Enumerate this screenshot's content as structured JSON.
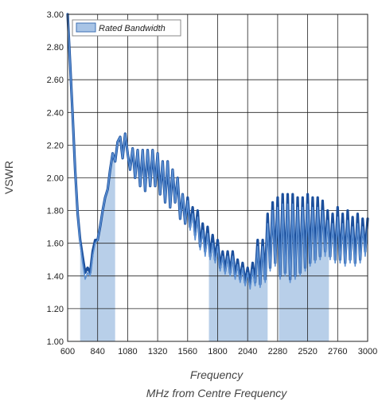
{
  "chart_data": {
    "type": "line",
    "title": "",
    "ylabel": "VSWR",
    "xlabel_line1": "Frequency",
    "xlabel_line2": "MHz from Centre Frequency",
    "xlim": [
      600,
      3000
    ],
    "ylim": [
      1.0,
      3.0
    ],
    "x_ticks": [
      600,
      840,
      1080,
      1320,
      1560,
      1800,
      2040,
      2280,
      2520,
      2760,
      3000
    ],
    "y_ticks": [
      "1.00",
      "1.20",
      "1.40",
      "1.60",
      "1.80",
      "2.00",
      "2.20",
      "2.40",
      "2.60",
      "2.80",
      "3.00"
    ],
    "grid": true,
    "legend": {
      "label": "Rated Bandwidth",
      "placement": "top-left"
    },
    "colors": {
      "band_fill": "#b8cfe9",
      "legend_fill": "#a8c4e6",
      "outline_series": "#1b4f9c",
      "inner_series": "#5b8fd2",
      "grid": "#222222"
    },
    "rated_bands": [
      {
        "x_start": 700,
        "x_end": 980
      },
      {
        "x_start": 1730,
        "x_end": 2200
      },
      {
        "x_start": 2290,
        "x_end": 2690
      }
    ],
    "series": [
      {
        "style": "dark-outer",
        "x": [
          600,
          620,
          640,
          660,
          680,
          700,
          720,
          740,
          760,
          780,
          800,
          820,
          840,
          860,
          880,
          900,
          920,
          940,
          960,
          980,
          1000,
          1020,
          1040,
          1060,
          1080,
          1100,
          1120,
          1140,
          1160,
          1180,
          1200,
          1220,
          1240,
          1260,
          1280,
          1300,
          1320,
          1340,
          1360,
          1380,
          1400,
          1420,
          1440,
          1460,
          1480,
          1500,
          1520,
          1540,
          1560,
          1580,
          1600,
          1620,
          1640,
          1660,
          1680,
          1700,
          1720,
          1740,
          1760,
          1780,
          1800,
          1820,
          1840,
          1860,
          1880,
          1900,
          1920,
          1940,
          1960,
          1980,
          2000,
          2020,
          2040,
          2060,
          2080,
          2100,
          2120,
          2140,
          2160,
          2180,
          2200,
          2220,
          2240,
          2260,
          2280,
          2300,
          2320,
          2340,
          2360,
          2380,
          2400,
          2420,
          2440,
          2460,
          2480,
          2500,
          2520,
          2540,
          2560,
          2580,
          2600,
          2620,
          2640,
          2660,
          2680,
          2700,
          2720,
          2740,
          2760,
          2780,
          2800,
          2820,
          2840,
          2860,
          2880,
          2900,
          2920,
          2940,
          2960,
          2980,
          3000
        ],
        "y": [
          3.0,
          2.7,
          2.38,
          2.05,
          1.78,
          1.62,
          1.52,
          1.42,
          1.45,
          1.42,
          1.55,
          1.62,
          1.62,
          1.7,
          1.8,
          1.88,
          1.93,
          2.05,
          2.15,
          2.1,
          2.22,
          2.25,
          2.12,
          2.27,
          2.15,
          2.05,
          2.18,
          2.0,
          2.17,
          1.95,
          2.17,
          1.92,
          2.17,
          1.95,
          2.17,
          1.95,
          2.15,
          1.9,
          2.1,
          1.85,
          2.1,
          1.82,
          2.05,
          1.85,
          2.0,
          1.75,
          1.9,
          1.72,
          1.88,
          1.7,
          1.82,
          1.65,
          1.8,
          1.58,
          1.72,
          1.55,
          1.7,
          1.52,
          1.65,
          1.5,
          1.62,
          1.45,
          1.55,
          1.43,
          1.55,
          1.42,
          1.55,
          1.4,
          1.5,
          1.38,
          1.48,
          1.36,
          1.45,
          1.35,
          1.48,
          1.36,
          1.62,
          1.35,
          1.62,
          1.38,
          1.78,
          1.45,
          1.85,
          1.48,
          1.88,
          1.4,
          1.9,
          1.42,
          1.9,
          1.38,
          1.9,
          1.4,
          1.88,
          1.42,
          1.88,
          1.45,
          1.9,
          1.48,
          1.88,
          1.5,
          1.88,
          1.52,
          1.86,
          1.55,
          1.8,
          1.52,
          1.78,
          1.5,
          1.82,
          1.5,
          1.78,
          1.48,
          1.8,
          1.5,
          1.76,
          1.48,
          1.78,
          1.5,
          1.75,
          1.55,
          1.75
        ]
      },
      {
        "style": "light-inner",
        "x": [
          600,
          620,
          640,
          660,
          680,
          700,
          720,
          740,
          760,
          780,
          800,
          820,
          840,
          860,
          880,
          900,
          920,
          940,
          960,
          980,
          1000,
          1020,
          1040,
          1060,
          1080,
          1100,
          1120,
          1140,
          1160,
          1180,
          1200,
          1220,
          1240,
          1260,
          1280,
          1300,
          1320,
          1340,
          1360,
          1380,
          1400,
          1420,
          1440,
          1460,
          1480,
          1500,
          1520,
          1540,
          1560,
          1580,
          1600,
          1620,
          1640,
          1660,
          1680,
          1700,
          1720,
          1740,
          1760,
          1780,
          1800,
          1820,
          1840,
          1860,
          1880,
          1900,
          1920,
          1940,
          1960,
          1980,
          2000,
          2020,
          2040,
          2060,
          2080,
          2100,
          2120,
          2140,
          2160,
          2180,
          2200,
          2220,
          2240,
          2260,
          2280,
          2300,
          2320,
          2340,
          2360,
          2380,
          2400,
          2420,
          2440,
          2460,
          2480,
          2500,
          2520,
          2540,
          2560,
          2580,
          2600,
          2620,
          2640,
          2660,
          2680,
          2700,
          2720,
          2740,
          2760,
          2780,
          2800,
          2820,
          2840,
          2860,
          2880,
          2900,
          2920,
          2940,
          2960,
          2980,
          3000
        ],
        "y": [
          3.0,
          2.7,
          2.38,
          2.05,
          1.78,
          1.6,
          1.48,
          1.38,
          1.42,
          1.4,
          1.52,
          1.6,
          1.62,
          1.7,
          1.8,
          1.88,
          1.93,
          2.05,
          2.15,
          2.1,
          2.22,
          2.25,
          2.12,
          2.27,
          2.15,
          2.05,
          2.18,
          2.0,
          2.17,
          1.95,
          2.17,
          1.92,
          2.17,
          1.95,
          2.17,
          1.95,
          2.15,
          1.9,
          2.1,
          1.85,
          2.1,
          1.82,
          2.05,
          1.85,
          2.0,
          1.75,
          1.9,
          1.72,
          1.86,
          1.68,
          1.78,
          1.62,
          1.76,
          1.56,
          1.68,
          1.52,
          1.66,
          1.5,
          1.6,
          1.48,
          1.58,
          1.43,
          1.52,
          1.41,
          1.52,
          1.4,
          1.52,
          1.38,
          1.47,
          1.36,
          1.45,
          1.34,
          1.42,
          1.32,
          1.44,
          1.34,
          1.58,
          1.33,
          1.58,
          1.36,
          1.72,
          1.43,
          1.8,
          1.46,
          1.82,
          1.38,
          1.84,
          1.4,
          1.84,
          1.36,
          1.84,
          1.38,
          1.82,
          1.4,
          1.82,
          1.43,
          1.84,
          1.46,
          1.82,
          1.48,
          1.82,
          1.5,
          1.8,
          1.52,
          1.74,
          1.5,
          1.72,
          1.48,
          1.76,
          1.48,
          1.72,
          1.46,
          1.74,
          1.48,
          1.7,
          1.46,
          1.72,
          1.48,
          1.7,
          1.52,
          1.7
        ]
      }
    ]
  }
}
